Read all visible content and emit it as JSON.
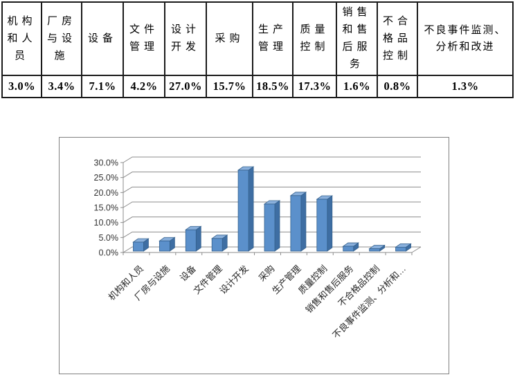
{
  "table": {
    "columns": [
      {
        "label": "机构和人员",
        "value": "3.0%"
      },
      {
        "label": "厂房与设施",
        "value": "3.4%"
      },
      {
        "label": "设备",
        "value": "7.1%"
      },
      {
        "label": "文件管理",
        "value": "4.2%"
      },
      {
        "label": "设计开发",
        "value": "27.0%"
      },
      {
        "label": "采购",
        "value": "15.7%"
      },
      {
        "label": "生产管理",
        "value": "18.5%"
      },
      {
        "label": "质量控制",
        "value": "17.3%"
      },
      {
        "label": "销售和售后服务",
        "value": "1.6%"
      },
      {
        "label": "不合格品控制",
        "value": "0.8%"
      },
      {
        "label": "不良事件监测、分析和改进",
        "value": "1.3%"
      }
    ]
  },
  "chart_data": {
    "type": "bar",
    "style": "3d-column",
    "title": "",
    "xlabel": "",
    "ylabel": "",
    "categories": [
      "机构和人员",
      "厂房与设施",
      "设备",
      "文件管理",
      "设计开发",
      "采购",
      "生产管理",
      "质量控制",
      "销售和售后服务",
      "不合格品控制",
      "不良事件监测、分析和…"
    ],
    "values": [
      3.0,
      3.4,
      7.1,
      4.2,
      27.0,
      15.7,
      18.5,
      17.3,
      1.6,
      0.8,
      1.3
    ],
    "unit": "percent",
    "y_axis": {
      "min": 0,
      "max": 30,
      "step": 5,
      "tick_labels": [
        "0.0%",
        "5.0%",
        "10.0%",
        "15.0%",
        "20.0%",
        "25.0%",
        "30.0%"
      ]
    },
    "grid": true,
    "legend": false,
    "colors": {
      "bar_front": "#5b90cb",
      "bar_side": "#3e6ea3",
      "bar_top": "#8ab0dc",
      "bar_outline": "#35618d",
      "gridline": "#8c8c8c",
      "axis": "#8c8c8c",
      "tick_text": "#333333",
      "category_text": "#262626",
      "chart_border": "#808080",
      "table_border": "#1a1a1a"
    }
  }
}
